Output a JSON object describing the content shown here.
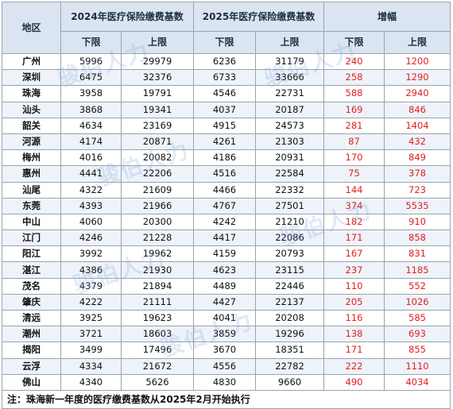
{
  "headers": {
    "region": "地区",
    "group_2024": "2024年医疗保险缴费基数",
    "group_2025": "2025年医疗保险缴费基数",
    "group_increase": "增幅",
    "lower": "下限",
    "upper": "上限"
  },
  "rows": [
    {
      "city": "广州",
      "l24": "5996",
      "u24": "29979",
      "l25": "6236",
      "u25": "31179",
      "li": "240",
      "ui": "1200"
    },
    {
      "city": "深圳",
      "l24": "6475",
      "u24": "32376",
      "l25": "6733",
      "u25": "33666",
      "li": "258",
      "ui": "1290"
    },
    {
      "city": "珠海",
      "l24": "3958",
      "u24": "19791",
      "l25": "4546",
      "u25": "22731",
      "li": "588",
      "ui": "2940"
    },
    {
      "city": "汕头",
      "l24": "3868",
      "u24": "19341",
      "l25": "4037",
      "u25": "20187",
      "li": "169",
      "ui": "846"
    },
    {
      "city": "韶关",
      "l24": "4634",
      "u24": "23169",
      "l25": "4915",
      "u25": "24573",
      "li": "281",
      "ui": "1404"
    },
    {
      "city": "河源",
      "l24": "4174",
      "u24": "20871",
      "l25": "4261",
      "u25": "21303",
      "li": "87",
      "ui": "432"
    },
    {
      "city": "梅州",
      "l24": "4016",
      "u24": "20082",
      "l25": "4186",
      "u25": "20931",
      "li": "170",
      "ui": "849"
    },
    {
      "city": "惠州",
      "l24": "4441",
      "u24": "22206",
      "l25": "4516",
      "u25": "22584",
      "li": "75",
      "ui": "378"
    },
    {
      "city": "汕尾",
      "l24": "4322",
      "u24": "21609",
      "l25": "4466",
      "u25": "22332",
      "li": "144",
      "ui": "723"
    },
    {
      "city": "东莞",
      "l24": "4393",
      "u24": "21966",
      "l25": "4767",
      "u25": "27501",
      "li": "374",
      "ui": "5535"
    },
    {
      "city": "中山",
      "l24": "4060",
      "u24": "20300",
      "l25": "4242",
      "u25": "21210",
      "li": "182",
      "ui": "910"
    },
    {
      "city": "江门",
      "l24": "4246",
      "u24": "21228",
      "l25": "4417",
      "u25": "22086",
      "li": "171",
      "ui": "858"
    },
    {
      "city": "阳江",
      "l24": "3992",
      "u24": "19962",
      "l25": "4159",
      "u25": "20793",
      "li": "167",
      "ui": "831"
    },
    {
      "city": "湛江",
      "l24": "4386",
      "u24": "21930",
      "l25": "4623",
      "u25": "23115",
      "li": "237",
      "ui": "1185"
    },
    {
      "city": "茂名",
      "l24": "4379",
      "u24": "21894",
      "l25": "4489",
      "u25": "22446",
      "li": "110",
      "ui": "552"
    },
    {
      "city": "肇庆",
      "l24": "4222",
      "u24": "21111",
      "l25": "4427",
      "u25": "22137",
      "li": "205",
      "ui": "1026"
    },
    {
      "city": "清远",
      "l24": "3925",
      "u24": "19623",
      "l25": "4041",
      "u25": "20208",
      "li": "116",
      "ui": "585"
    },
    {
      "city": "潮州",
      "l24": "3721",
      "u24": "18603",
      "l25": "3859",
      "u25": "19296",
      "li": "138",
      "ui": "693"
    },
    {
      "city": "揭阳",
      "l24": "3499",
      "u24": "17496",
      "l25": "3670",
      "u25": "18351",
      "li": "171",
      "ui": "855"
    },
    {
      "city": "云浮",
      "l24": "4334",
      "u24": "21672",
      "l25": "4556",
      "u25": "22782",
      "li": "222",
      "ui": "1110"
    },
    {
      "city": "佛山",
      "l24": "4340",
      "u24": "5626",
      "l25": "4830",
      "u25": "9660",
      "li": "490",
      "ui": "4034"
    }
  ],
  "note": "注：珠海新一年度的医疗缴费基数从2025年2月开始执行",
  "watermark": "骏伯人力",
  "colors": {
    "header_bg": "#dbe5f1",
    "increase_text": "#e02020",
    "watermark": "#78a0d7"
  }
}
